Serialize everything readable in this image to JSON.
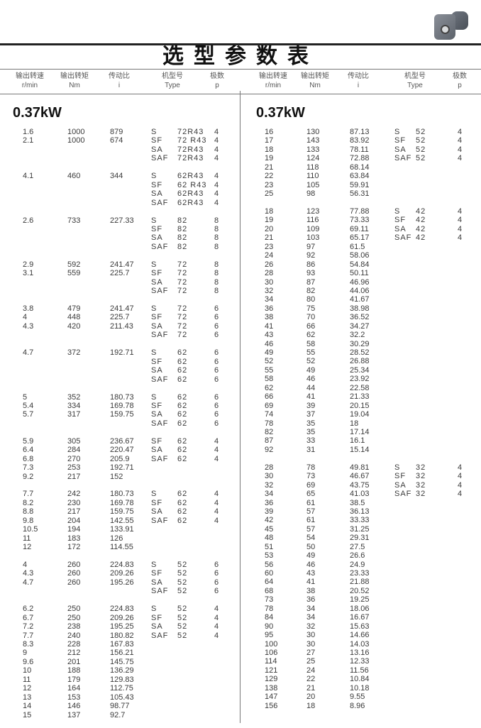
{
  "title": "选型参数表",
  "headers": [
    {
      "cn": "输出转速",
      "en": "r/min"
    },
    {
      "cn": "输出转矩",
      "en": "Nm"
    },
    {
      "cn": "传动比",
      "en": "i"
    },
    {
      "cn": "机型号",
      "en": "Type"
    },
    {
      "cn": "极数",
      "en": "p"
    }
  ],
  "left": {
    "power": "0.37kW",
    "groups": [
      {
        "rows": [
          [
            "1.6",
            "1000",
            "879"
          ],
          [
            "2.1",
            "1000",
            "674"
          ]
        ],
        "types": [
          [
            "S",
            "72R43",
            "4"
          ],
          [
            "SF",
            "72 R43",
            "4"
          ],
          [
            "SA",
            "72R43",
            "4"
          ],
          [
            "SAF",
            "72R43",
            "4"
          ]
        ]
      },
      {
        "rows": [
          [
            "4.1",
            "460",
            "344"
          ]
        ],
        "types": [
          [
            "S",
            "62R43",
            "4"
          ],
          [
            "SF",
            "62 R43",
            "4"
          ],
          [
            "SA",
            "62R43",
            "4"
          ],
          [
            "SAF",
            "62R43",
            "4"
          ]
        ]
      },
      {
        "rows": [
          [
            "2.6",
            "733",
            "227.33"
          ]
        ],
        "types": [
          [
            "S",
            "82",
            "8"
          ],
          [
            "SF",
            "82",
            "8"
          ],
          [
            "SA",
            "82",
            "8"
          ],
          [
            "SAF",
            "82",
            "8"
          ]
        ]
      },
      {
        "rows": [
          [
            "2.9",
            "592",
            "241.47"
          ],
          [
            "3.1",
            "559",
            "225.7"
          ]
        ],
        "types": [
          [
            "S",
            "72",
            "8"
          ],
          [
            "SF",
            "72",
            "8"
          ],
          [
            "SA",
            "72",
            "8"
          ],
          [
            "SAF",
            "72",
            "8"
          ]
        ]
      },
      {
        "rows": [
          [
            "3.8",
            "479",
            "241.47"
          ],
          [
            "4",
            "448",
            "225.7"
          ],
          [
            "4.3",
            "420",
            "211.43"
          ]
        ],
        "types": [
          [
            "S",
            "72",
            "6"
          ],
          [
            "SF",
            "72",
            "6"
          ],
          [
            "SA",
            "72",
            "6"
          ],
          [
            "SAF",
            "72",
            "6"
          ]
        ]
      },
      {
        "rows": [
          [
            "4.7",
            "372",
            "192.71"
          ]
        ],
        "types": [
          [
            "S",
            "62",
            "6"
          ],
          [
            "SF",
            "62",
            "6"
          ],
          [
            "SA",
            "62",
            "6"
          ],
          [
            "SAF",
            "62",
            "6"
          ]
        ]
      },
      {
        "rows": [
          [
            "5",
            "352",
            "180.73"
          ],
          [
            "5.4",
            "334",
            "169.78"
          ],
          [
            "5.7",
            "317",
            "159.75"
          ]
        ],
        "types": [
          [
            "S",
            "62",
            "6"
          ],
          [
            "SF",
            "62",
            "6"
          ],
          [
            "SA",
            "62",
            "6"
          ],
          [
            "SAF",
            "62",
            "6"
          ]
        ]
      },
      {
        "rows": [
          [
            "5.9",
            "305",
            "236.67"
          ],
          [
            "6.4",
            "284",
            "220.47"
          ],
          [
            "6.8",
            "270",
            "205.9"
          ],
          [
            "7.3",
            "253",
            "192.71"
          ],
          [
            "9.2",
            "217",
            "152"
          ]
        ],
        "types": [
          [
            "SF",
            "62",
            "4"
          ],
          [
            "SA",
            "62",
            "4"
          ],
          [
            "SAF",
            "62",
            "4"
          ]
        ]
      },
      {
        "rows": [
          [
            "7.7",
            "242",
            "180.73"
          ],
          [
            "8.2",
            "230",
            "169.78"
          ],
          [
            "8.8",
            "217",
            "159.75"
          ],
          [
            "9.8",
            "204",
            "142.55"
          ],
          [
            "10.5",
            "194",
            "133.91"
          ],
          [
            "11",
            "183",
            "126"
          ],
          [
            "12",
            "172",
            "114.55"
          ]
        ],
        "types": [
          [
            "S",
            "62",
            "4"
          ],
          [
            "SF",
            "62",
            "4"
          ],
          [
            "SA",
            "62",
            "4"
          ],
          [
            "SAF",
            "62",
            "4"
          ]
        ]
      },
      {
        "rows": [
          [
            "4",
            "260",
            "224.83"
          ],
          [
            "4.3",
            "260",
            "209.26"
          ],
          [
            "4.7",
            "260",
            "195.26"
          ]
        ],
        "types": [
          [
            "S",
            "52",
            "6"
          ],
          [
            "SF",
            "52",
            "6"
          ],
          [
            "SA",
            "52",
            "6"
          ],
          [
            "SAF",
            "52",
            "6"
          ]
        ]
      },
      {
        "rows": [
          [
            "6.2",
            "250",
            "224.83"
          ],
          [
            "6.7",
            "250",
            "209.26"
          ],
          [
            "7.2",
            "238",
            "195.25"
          ],
          [
            "7.7",
            "240",
            "180.82"
          ],
          [
            "8.3",
            "228",
            "167.83"
          ],
          [
            "9",
            "212",
            "156.21"
          ],
          [
            "9.6",
            "201",
            "145.75"
          ],
          [
            "10",
            "188",
            "136.29"
          ],
          [
            "11",
            "179",
            "129.83"
          ],
          [
            "12",
            "164",
            "112.75"
          ],
          [
            "13",
            "153",
            "105.43"
          ],
          [
            "14",
            "146",
            "98.77"
          ],
          [
            "15",
            "137",
            "92.7"
          ]
        ],
        "types": [
          [
            "S",
            "52",
            "4"
          ],
          [
            "SF",
            "52",
            "4"
          ],
          [
            "SA",
            "52",
            "4"
          ],
          [
            "SAF",
            "52",
            "4"
          ]
        ]
      }
    ]
  },
  "right": {
    "power": "0.37kW",
    "groups": [
      {
        "rows": [
          [
            "16",
            "130",
            "87.13"
          ],
          [
            "17",
            "143",
            "83.92"
          ],
          [
            "18",
            "133",
            "78.11"
          ],
          [
            "19",
            "124",
            "72.88"
          ],
          [
            "21",
            "118",
            "68.14"
          ],
          [
            "22",
            "110",
            "63.84"
          ],
          [
            "23",
            "105",
            "59.91"
          ],
          [
            "25",
            "98",
            "56.31"
          ]
        ],
        "types": [
          [
            "S",
            "52",
            "4"
          ],
          [
            "SF",
            "52",
            "4"
          ],
          [
            "SA",
            "52",
            "4"
          ],
          [
            "SAF",
            "52",
            "4"
          ]
        ]
      },
      {
        "rows": [
          [
            "18",
            "123",
            "77.88"
          ],
          [
            "19",
            "116",
            "73.33"
          ],
          [
            "20",
            "109",
            "69.11"
          ],
          [
            "21",
            "103",
            "65.17"
          ],
          [
            "23",
            "97",
            "61.5"
          ],
          [
            "24",
            "92",
            "58.06"
          ],
          [
            "26",
            "86",
            "54.84"
          ],
          [
            "28",
            "93",
            "50.11"
          ],
          [
            "30",
            "87",
            "46.96"
          ],
          [
            "32",
            "82",
            "44.06"
          ],
          [
            "34",
            "80",
            "41.67"
          ],
          [
            "36",
            "75",
            "38.98"
          ],
          [
            "38",
            "70",
            "36.52"
          ],
          [
            "41",
            "66",
            "34.27"
          ],
          [
            "43",
            "62",
            "32.2"
          ],
          [
            "46",
            "58",
            "30.29"
          ],
          [
            "49",
            "55",
            "28.52"
          ],
          [
            "52",
            "52",
            "26.88"
          ],
          [
            "55",
            "49",
            "25.34"
          ],
          [
            "58",
            "46",
            "23.92"
          ],
          [
            "62",
            "44",
            "22.58"
          ],
          [
            "66",
            "41",
            "21.33"
          ],
          [
            "69",
            "39",
            "20.15"
          ],
          [
            "74",
            "37",
            "19.04"
          ],
          [
            "78",
            "35",
            "18"
          ],
          [
            "82",
            "35",
            "17.14"
          ],
          [
            "87",
            "33",
            "16.1"
          ],
          [
            "92",
            "31",
            "15.14"
          ]
        ],
        "types": [
          [
            "S",
            "42",
            "4"
          ],
          [
            "SF",
            "42",
            "4"
          ],
          [
            "SA",
            "42",
            "4"
          ],
          [
            "SAF",
            "42",
            "4"
          ]
        ]
      },
      {
        "rows": [
          [
            "28",
            "78",
            "49.81"
          ],
          [
            "30",
            "73",
            "46.67"
          ],
          [
            "32",
            "69",
            "43.75"
          ],
          [
            "34",
            "65",
            "41.03"
          ],
          [
            "36",
            "61",
            "38.5"
          ],
          [
            "39",
            "57",
            "36.13"
          ],
          [
            "42",
            "61",
            "33.33"
          ],
          [
            "45",
            "57",
            "31.25"
          ],
          [
            "48",
            "54",
            "29.31"
          ],
          [
            "51",
            "50",
            "27.5"
          ],
          [
            "53",
            "49",
            "26.6"
          ],
          [
            "56",
            "46",
            "24.9"
          ],
          [
            "60",
            "43",
            "23.33"
          ],
          [
            "64",
            "41",
            "21.88"
          ],
          [
            "68",
            "38",
            "20.52"
          ],
          [
            "73",
            "36",
            "19.25"
          ],
          [
            "78",
            "34",
            "18.06"
          ],
          [
            "84",
            "34",
            "16.67"
          ],
          [
            "90",
            "32",
            "15.63"
          ],
          [
            "95",
            "30",
            "14.66"
          ],
          [
            "100",
            "30",
            "14.03"
          ],
          [
            "106",
            "27",
            "13.16"
          ],
          [
            "114",
            "25",
            "12.33"
          ],
          [
            "121",
            "24",
            "11.56"
          ],
          [
            "129",
            "22",
            "10.84"
          ],
          [
            "138",
            "21",
            "10.18"
          ],
          [
            "147",
            "20",
            "9.55"
          ],
          [
            "156",
            "18",
            "8.96"
          ]
        ],
        "types": [
          [
            "S",
            "32",
            "4"
          ],
          [
            "SF",
            "32",
            "4"
          ],
          [
            "SA",
            "32",
            "4"
          ],
          [
            "SAF",
            "32",
            "4"
          ]
        ]
      }
    ]
  }
}
